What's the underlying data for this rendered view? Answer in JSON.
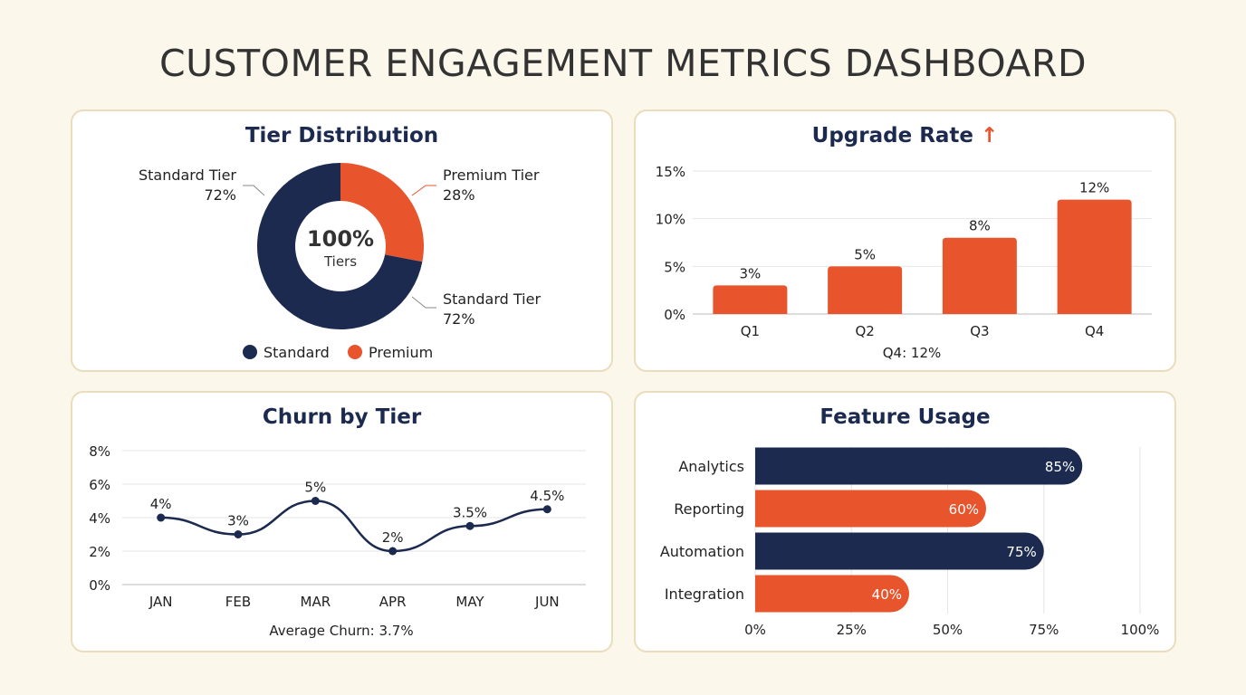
{
  "title": "CUSTOMER ENGAGEMENT METRICS DASHBOARD",
  "colors": {
    "navy": "#1b2a4e",
    "orange": "#e8542c",
    "background": "#fbf7ea",
    "card_border": "#eadcbc"
  },
  "chart_data": [
    {
      "type": "pie",
      "title": "Tier Distribution",
      "center_value": "100%",
      "center_label": "Tiers",
      "slices": [
        {
          "label": "Premium Tier",
          "value": 28,
          "value_label": "28%",
          "color": "#e8542c"
        },
        {
          "label": "Standard Tier",
          "value": 72,
          "value_label": "72%",
          "color": "#1b2a4e"
        }
      ],
      "callouts": [
        {
          "label": "Standard Tier",
          "value_label": "72%"
        },
        {
          "label": "Premium Tier",
          "value_label": "28%"
        },
        {
          "label": "Standard Tier",
          "value_label": "72%"
        }
      ],
      "legend": [
        {
          "name": "Standard",
          "color": "#1b2a4e"
        },
        {
          "name": "Premium",
          "color": "#e8542c"
        }
      ],
      "legend_placement": "bottom"
    },
    {
      "type": "bar",
      "title": "Upgrade Rate",
      "title_icon": "arrow-up-icon",
      "categories": [
        "Q1",
        "Q2",
        "Q3",
        "Q4"
      ],
      "values": [
        3,
        5,
        8,
        12
      ],
      "data_labels": [
        "3%",
        "5%",
        "8%",
        "12%"
      ],
      "yticks": [
        "0%",
        "5%",
        "10%",
        "15%"
      ],
      "ylim": [
        0,
        15
      ],
      "grid": true,
      "footnote": "Q4: 12%",
      "color": "#e8542c"
    },
    {
      "type": "line",
      "title": "Churn by Tier",
      "categories": [
        "JAN",
        "FEB",
        "MAR",
        "APR",
        "MAY",
        "JUN"
      ],
      "values": [
        4,
        3,
        5,
        2,
        3.5,
        4.5
      ],
      "data_labels": [
        "4%",
        "3%",
        "5%",
        "2%",
        "3.5%",
        "4.5%"
      ],
      "yticks": [
        "0%",
        "2%",
        "4%",
        "6%",
        "8%"
      ],
      "ylim": [
        0,
        8
      ],
      "grid": true,
      "footnote": "Average Churn: 3.7%",
      "color": "#1b2a4e"
    },
    {
      "type": "bar",
      "orientation": "horizontal",
      "title": "Feature Usage",
      "categories": [
        "Analytics",
        "Reporting",
        "Automation",
        "Integration"
      ],
      "values": [
        85,
        60,
        75,
        40
      ],
      "data_labels": [
        "85%",
        "60%",
        "75%",
        "40%"
      ],
      "colors": [
        "#1b2a4e",
        "#e8542c",
        "#1b2a4e",
        "#e8542c"
      ],
      "xticks": [
        "0%",
        "25%",
        "50%",
        "75%",
        "100%"
      ],
      "xlim": [
        0,
        100
      ],
      "grid": true
    }
  ]
}
